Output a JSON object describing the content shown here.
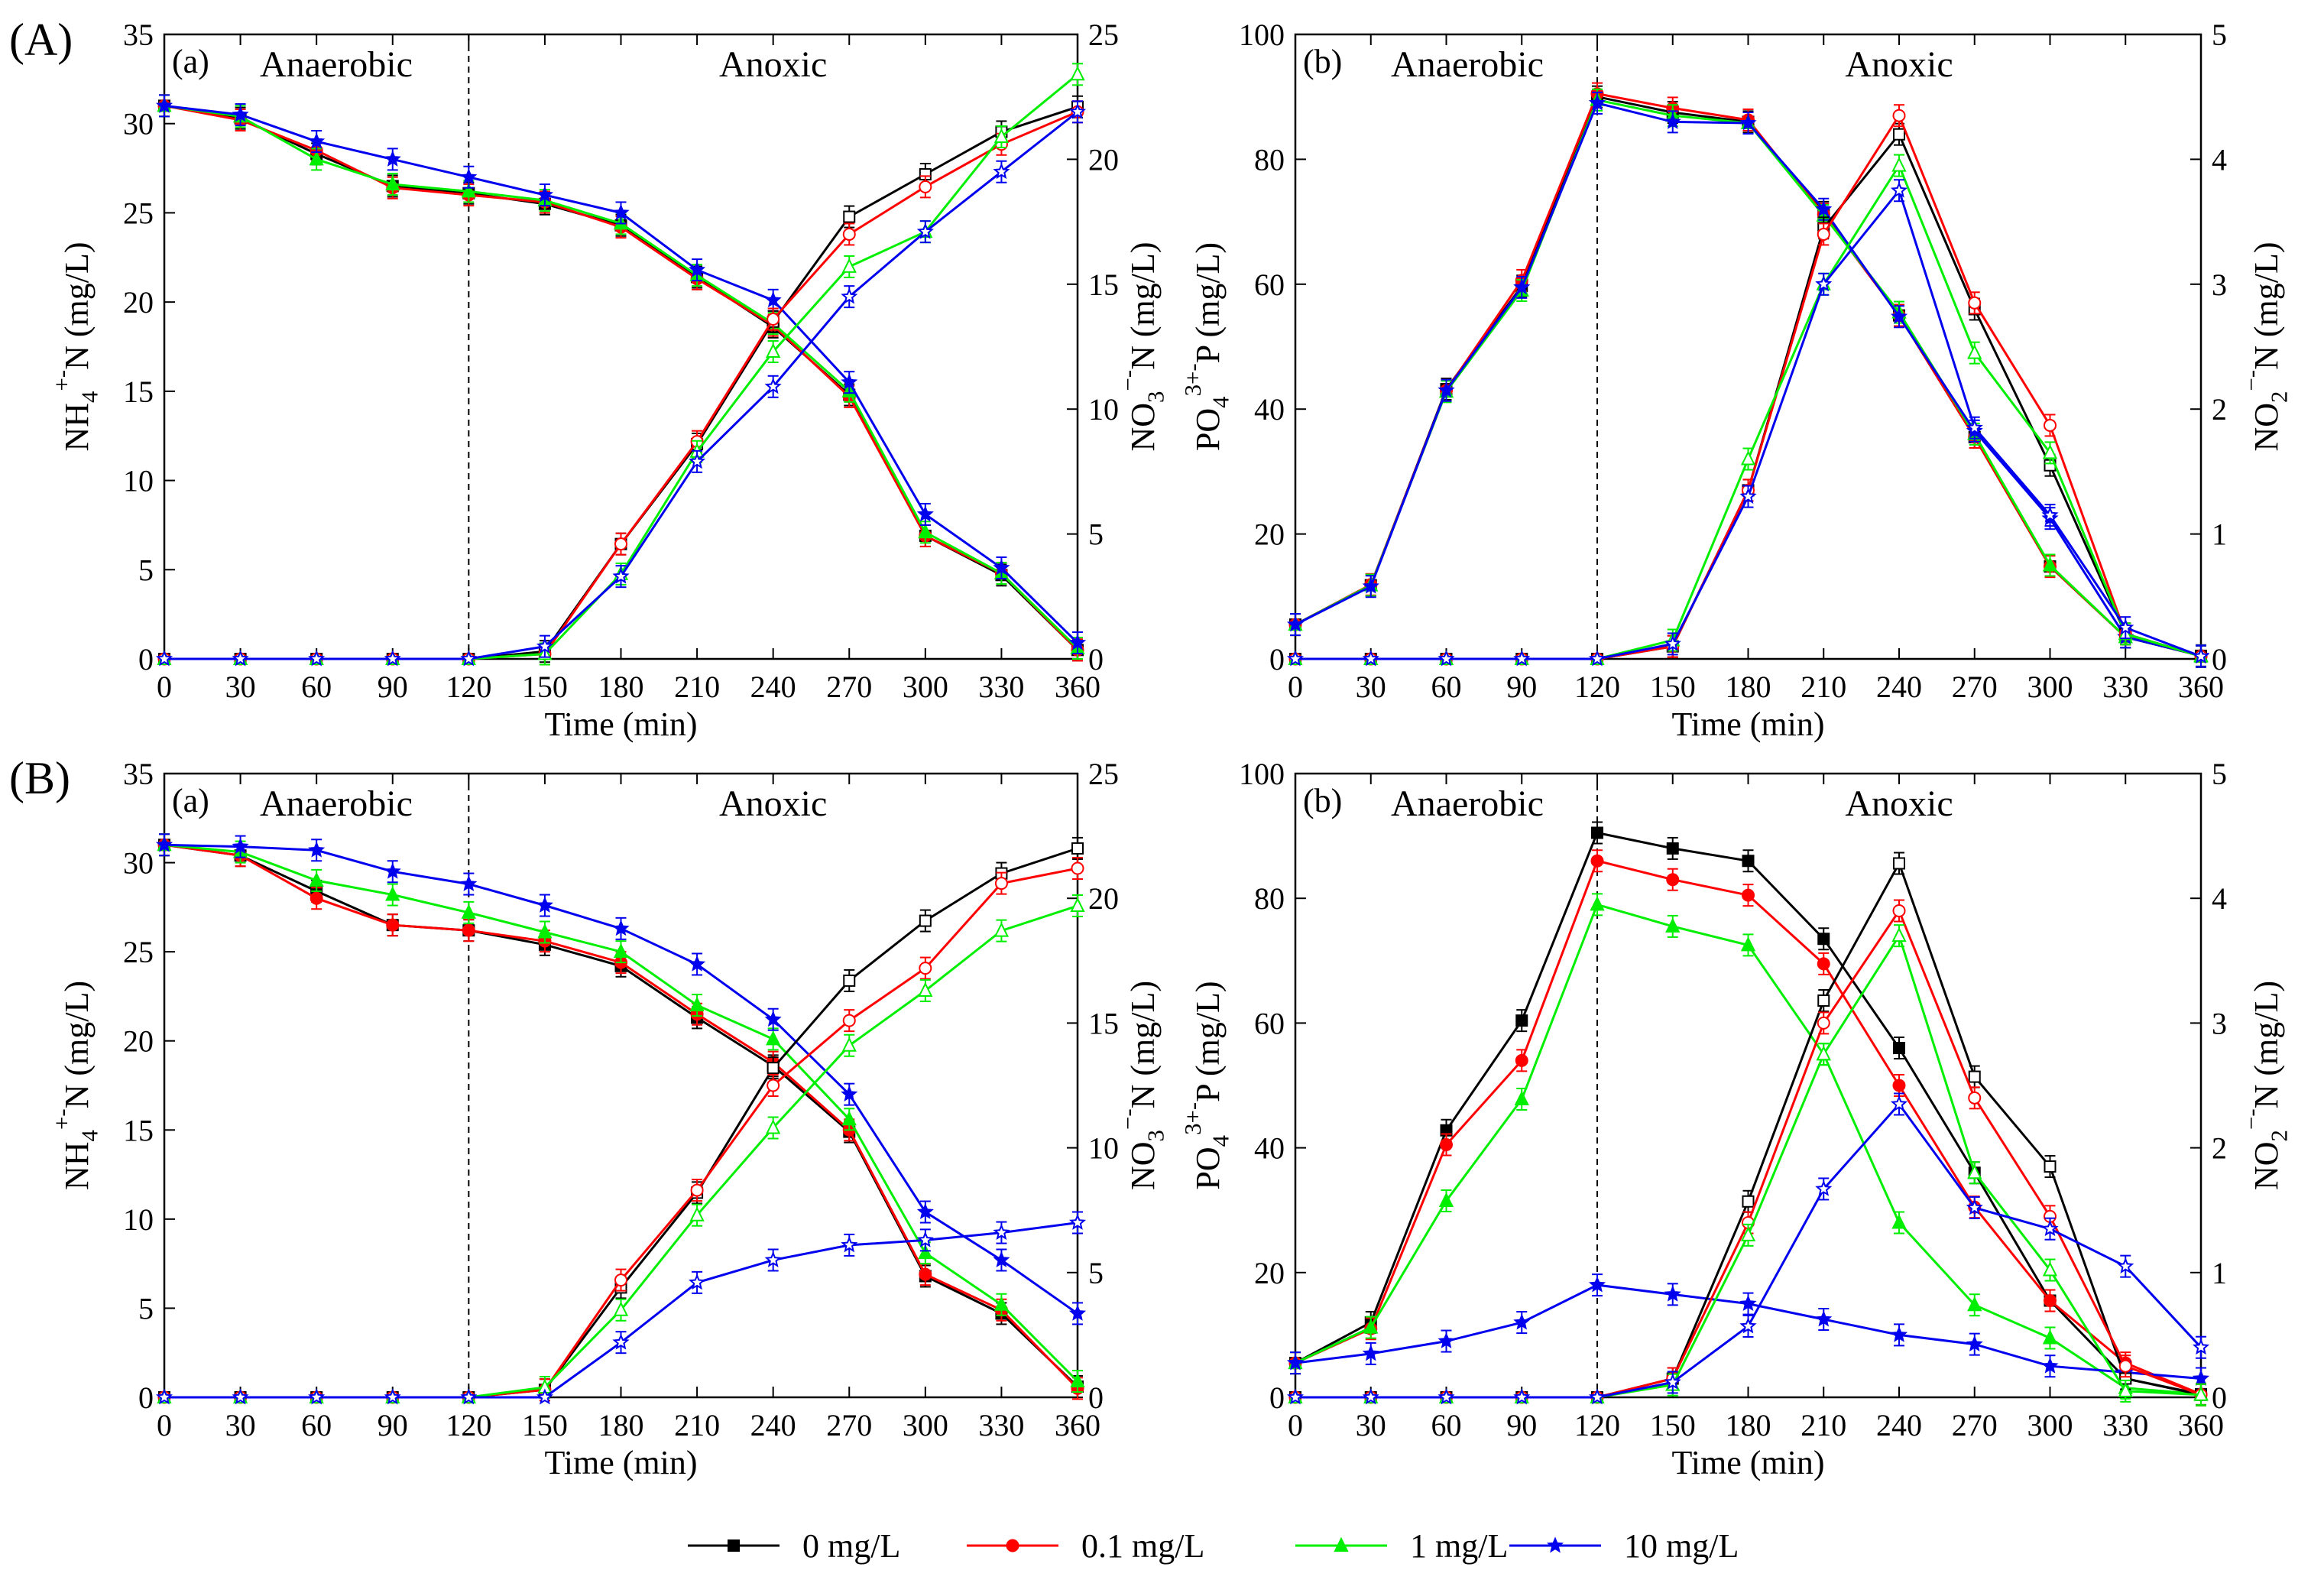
{
  "figure": {
    "group_labels": [
      "(A)",
      "(B)"
    ],
    "legend": [
      {
        "label": "0 mg/L",
        "color": "#000000",
        "marker": "square"
      },
      {
        "label": "0.1 mg/L",
        "color": "#ff0000",
        "marker": "circle"
      },
      {
        "label": "1 mg/L",
        "color": "#00ee00",
        "marker": "triangle"
      },
      {
        "label": "10 mg/L",
        "color": "#0000ee",
        "marker": "star"
      }
    ]
  },
  "chart_data": [
    {
      "id": "A-a",
      "type": "line",
      "panel_label": "(a)",
      "phase_labels": [
        "Anaerobic",
        "Anoxic"
      ],
      "phase_boundary": 120,
      "xlabel": "Time (min)",
      "ylabel": "NH4+-N (mg/L)",
      "y2label": "NO3−-N (mg/L)",
      "xlim": [
        0,
        360
      ],
      "ylim": [
        0,
        35
      ],
      "y2lim": [
        0,
        25
      ],
      "x": [
        0,
        30,
        60,
        90,
        120,
        150,
        180,
        210,
        240,
        270,
        300,
        330,
        360
      ],
      "xticks": [
        "0",
        "30",
        "60",
        "90",
        "120",
        "150",
        "180",
        "210",
        "240",
        "270",
        "300",
        "330",
        "360"
      ],
      "yticks": [
        "0",
        "5",
        "10",
        "15",
        "20",
        "25",
        "30",
        "35"
      ],
      "y2ticks": [
        "0",
        "5",
        "10",
        "15",
        "20",
        "25"
      ],
      "series": [
        {
          "name": "0 mg/L",
          "quantity": "NH4+-N",
          "axis": "left",
          "filled": true,
          "values": [
            31.0,
            30.3,
            28.3,
            26.5,
            26.1,
            25.5,
            24.3,
            21.4,
            18.6,
            14.8,
            6.9,
            4.7,
            0.5
          ]
        },
        {
          "name": "0.1 mg/L",
          "quantity": "NH4+-N",
          "axis": "left",
          "filled": true,
          "values": [
            31.0,
            30.2,
            28.5,
            26.4,
            26.0,
            25.6,
            24.2,
            21.3,
            18.7,
            14.7,
            6.9,
            4.8,
            0.5
          ]
        },
        {
          "name": "1 mg/L",
          "quantity": "NH4+-N",
          "axis": "left",
          "filled": true,
          "values": [
            31.0,
            30.4,
            28.0,
            26.6,
            26.2,
            25.7,
            24.4,
            21.5,
            18.8,
            15.0,
            7.1,
            4.8,
            0.6
          ]
        },
        {
          "name": "10 mg/L",
          "quantity": "NH4+-N",
          "axis": "left",
          "filled": true,
          "values": [
            31.0,
            30.5,
            29.0,
            28.0,
            27.0,
            26.0,
            25.0,
            21.8,
            20.1,
            15.5,
            8.1,
            5.1,
            0.9
          ]
        },
        {
          "name": "0 mg/L",
          "quantity": "NO3−-N",
          "axis": "right",
          "filled": false,
          "values": [
            0,
            0,
            0,
            0,
            0,
            0.3,
            4.6,
            8.6,
            13.5,
            17.7,
            19.4,
            21.1,
            22.1
          ]
        },
        {
          "name": "0.1 mg/L",
          "quantity": "NO3−-N",
          "axis": "right",
          "filled": false,
          "values": [
            0,
            0,
            0,
            0,
            0,
            0.2,
            4.6,
            8.7,
            13.6,
            17.0,
            18.9,
            20.6,
            21.9
          ]
        },
        {
          "name": "1 mg/L",
          "quantity": "NO3−-N",
          "axis": "right",
          "filled": false,
          "values": [
            0,
            0,
            0,
            0,
            0,
            0.2,
            3.4,
            8.3,
            12.3,
            15.7,
            17.1,
            20.9,
            23.4
          ]
        },
        {
          "name": "10 mg/L",
          "quantity": "NO3−-N",
          "axis": "right",
          "filled": false,
          "values": [
            0,
            0,
            0,
            0,
            0,
            0.5,
            3.3,
            7.9,
            10.9,
            14.5,
            17.1,
            19.5,
            21.9
          ]
        }
      ]
    },
    {
      "id": "A-b",
      "type": "line",
      "panel_label": "(b)",
      "phase_labels": [
        "Anaerobic",
        "Anoxic"
      ],
      "phase_boundary": 120,
      "xlabel": "Time (min)",
      "ylabel": "PO43+-P (mg/L)",
      "y2label": "NO2−-N (mg/L)",
      "xlim": [
        0,
        360
      ],
      "ylim": [
        0,
        100
      ],
      "y2lim": [
        0,
        5
      ],
      "x": [
        0,
        30,
        60,
        90,
        120,
        150,
        180,
        210,
        240,
        270,
        300,
        330,
        360
      ],
      "xticks": [
        "0",
        "30",
        "60",
        "90",
        "120",
        "150",
        "180",
        "210",
        "240",
        "270",
        "300",
        "330",
        "360"
      ],
      "yticks": [
        "0",
        "20",
        "40",
        "60",
        "80",
        "100"
      ],
      "y2ticks": [
        "0",
        "1",
        "2",
        "3",
        "4",
        "5"
      ],
      "series": [
        {
          "name": "0 mg/L",
          "quantity": "PO43+-P",
          "axis": "left",
          "filled": true,
          "values": [
            5.5,
            11.8,
            43.2,
            59.7,
            90.0,
            87.5,
            86.0,
            71.5,
            55.0,
            35.5,
            14.8,
            3.5,
            0.5
          ]
        },
        {
          "name": "0.1 mg/L",
          "quantity": "PO43+-P",
          "axis": "left",
          "filled": true,
          "values": [
            5.5,
            11.9,
            43.0,
            60.6,
            90.5,
            88.2,
            86.3,
            71.2,
            55.0,
            35.5,
            14.8,
            3.5,
            0.5
          ]
        },
        {
          "name": "1 mg/L",
          "quantity": "PO43+-P",
          "axis": "left",
          "filled": true,
          "values": [
            5.5,
            11.8,
            42.8,
            59.0,
            89.5,
            87.0,
            85.8,
            71.0,
            55.5,
            36.0,
            15.0,
            3.5,
            0.5
          ]
        },
        {
          "name": "10 mg/L",
          "quantity": "PO43+-P",
          "axis": "left",
          "filled": true,
          "values": [
            5.5,
            11.6,
            43.0,
            59.5,
            89.0,
            86.0,
            85.8,
            72.0,
            54.8,
            36.5,
            22.5,
            3.5,
            0.5
          ]
        },
        {
          "name": "0 mg/L",
          "quantity": "NO2−-N",
          "axis": "right",
          "filled": false,
          "values": [
            0,
            0,
            0,
            0,
            0,
            0.1,
            1.35,
            3.45,
            4.2,
            2.8,
            1.55,
            0.2,
            0.02
          ]
        },
        {
          "name": "0.1 mg/L",
          "quantity": "NO2−-N",
          "axis": "right",
          "filled": false,
          "values": [
            0,
            0,
            0,
            0,
            0,
            0.1,
            1.35,
            3.4,
            4.35,
            2.85,
            1.87,
            0.2,
            0.02
          ]
        },
        {
          "name": "1 mg/L",
          "quantity": "NO2−-N",
          "axis": "right",
          "filled": false,
          "values": [
            0,
            0,
            0,
            0,
            0,
            0.15,
            1.6,
            3.0,
            3.95,
            2.45,
            1.65,
            0.2,
            0.02
          ]
        },
        {
          "name": "10 mg/L",
          "quantity": "NO2−-N",
          "axis": "right",
          "filled": false,
          "values": [
            0,
            0,
            0,
            0,
            0,
            0.12,
            1.3,
            3.0,
            3.75,
            1.85,
            1.15,
            0.25,
            0.02
          ]
        }
      ]
    },
    {
      "id": "B-a",
      "type": "line",
      "panel_label": "(a)",
      "phase_labels": [
        "Anaerobic",
        "Anoxic"
      ],
      "phase_boundary": 120,
      "xlabel": "Time (min)",
      "ylabel": "NH4+-N (mg/L)",
      "y2label": "NO3−-N (mg/L)",
      "xlim": [
        0,
        360
      ],
      "ylim": [
        0,
        35
      ],
      "y2lim": [
        0,
        25
      ],
      "x": [
        0,
        30,
        60,
        90,
        120,
        150,
        180,
        210,
        240,
        270,
        300,
        330,
        360
      ],
      "xticks": [
        "0",
        "30",
        "60",
        "90",
        "120",
        "150",
        "180",
        "210",
        "240",
        "270",
        "300",
        "330",
        "360"
      ],
      "yticks": [
        "0",
        "5",
        "10",
        "15",
        "20",
        "25",
        "30",
        "35"
      ],
      "y2ticks": [
        "0",
        "5",
        "10",
        "15",
        "20",
        "25"
      ],
      "series": [
        {
          "name": "0 mg/L",
          "quantity": "NH4+-N",
          "axis": "left",
          "filled": true,
          "values": [
            31.0,
            30.4,
            28.4,
            26.5,
            26.2,
            25.4,
            24.2,
            21.3,
            18.6,
            14.9,
            6.8,
            4.7,
            0.6
          ]
        },
        {
          "name": "0.1 mg/L",
          "quantity": "NH4+-N",
          "axis": "left",
          "filled": true,
          "values": [
            31.0,
            30.4,
            28.0,
            26.5,
            26.2,
            25.6,
            24.4,
            21.5,
            18.8,
            15.0,
            6.9,
            4.9,
            0.5
          ]
        },
        {
          "name": "1 mg/L",
          "quantity": "NH4+-N",
          "axis": "left",
          "filled": true,
          "values": [
            31.0,
            30.6,
            29.0,
            28.2,
            27.2,
            26.1,
            25.0,
            22.0,
            20.1,
            15.6,
            8.1,
            5.2,
            0.9
          ]
        },
        {
          "name": "10 mg/L",
          "quantity": "NH4+-N",
          "axis": "left",
          "filled": true,
          "values": [
            31.0,
            30.9,
            30.7,
            29.5,
            28.8,
            27.6,
            26.3,
            24.3,
            21.2,
            17.0,
            10.4,
            7.7,
            4.7
          ]
        },
        {
          "name": "0 mg/L",
          "quantity": "NO3−-N",
          "axis": "right",
          "filled": false,
          "values": [
            0,
            0,
            0,
            0,
            0,
            0.3,
            4.4,
            8.2,
            13.2,
            16.7,
            19.1,
            21.0,
            22.0
          ]
        },
        {
          "name": "0.1 mg/L",
          "quantity": "NO3−-N",
          "axis": "right",
          "filled": false,
          "values": [
            0,
            0,
            0,
            0,
            0,
            0.3,
            4.7,
            8.3,
            12.5,
            15.1,
            17.2,
            20.6,
            21.2
          ]
        },
        {
          "name": "1 mg/L",
          "quantity": "NO3−-N",
          "axis": "right",
          "filled": false,
          "values": [
            0,
            0,
            0,
            0,
            0,
            0.4,
            3.5,
            7.3,
            10.8,
            14.1,
            16.3,
            18.7,
            19.7
          ]
        },
        {
          "name": "10 mg/L",
          "quantity": "NO3−-N",
          "axis": "right",
          "filled": false,
          "values": [
            0,
            0,
            0,
            0,
            0,
            0,
            2.2,
            4.6,
            5.5,
            6.1,
            6.3,
            6.6,
            7.0
          ]
        }
      ]
    },
    {
      "id": "B-b",
      "type": "line",
      "panel_label": "(b)",
      "phase_labels": [
        "Anaerobic",
        "Anoxic"
      ],
      "phase_boundary": 120,
      "xlabel": "Time (min)",
      "ylabel": "PO43+-P (mg/L)",
      "y2label": "NO2−-N (mg/L)",
      "xlim": [
        0,
        360
      ],
      "ylim": [
        0,
        100
      ],
      "y2lim": [
        0,
        5
      ],
      "x": [
        0,
        30,
        60,
        90,
        120,
        150,
        180,
        210,
        240,
        270,
        300,
        330,
        360
      ],
      "xticks": [
        "0",
        "30",
        "60",
        "90",
        "120",
        "150",
        "180",
        "210",
        "240",
        "270",
        "300",
        "330",
        "360"
      ],
      "yticks": [
        "0",
        "20",
        "40",
        "60",
        "80",
        "100"
      ],
      "y2ticks": [
        "0",
        "1",
        "2",
        "3",
        "4",
        "5"
      ],
      "series": [
        {
          "name": "0 mg/L",
          "quantity": "PO43+-P",
          "axis": "left",
          "filled": true,
          "values": [
            5.5,
            12.0,
            42.8,
            60.4,
            90.5,
            88.0,
            86.0,
            73.5,
            56.0,
            36.0,
            15.5,
            3.0,
            0.5
          ]
        },
        {
          "name": "0.1 mg/L",
          "quantity": "PO43+-P",
          "axis": "left",
          "filled": true,
          "values": [
            5.5,
            11.0,
            40.5,
            54.0,
            86.0,
            83.0,
            80.5,
            69.5,
            50.0,
            30.5,
            15.5,
            5.5,
            0.5
          ]
        },
        {
          "name": "1 mg/L",
          "quantity": "PO43+-P",
          "axis": "left",
          "filled": true,
          "values": [
            5.5,
            11.2,
            31.5,
            47.8,
            79.0,
            75.5,
            72.5,
            55.0,
            28.0,
            14.8,
            9.5,
            1.5,
            0.5
          ]
        },
        {
          "name": "10 mg/L",
          "quantity": "PO43+-P",
          "axis": "left",
          "filled": true,
          "values": [
            5.5,
            7.0,
            9.0,
            12.0,
            18.0,
            16.5,
            15.0,
            12.5,
            10.0,
            8.5,
            5.0,
            4.0,
            3.0
          ]
        },
        {
          "name": "0 mg/L",
          "quantity": "NO2−-N",
          "axis": "right",
          "filled": false,
          "values": [
            0,
            0,
            0,
            0,
            0,
            0.15,
            1.57,
            3.18,
            4.28,
            2.57,
            1.85,
            0.15,
            0.02
          ]
        },
        {
          "name": "0.1 mg/L",
          "quantity": "NO2−-N",
          "axis": "right",
          "filled": false,
          "values": [
            0,
            0,
            0,
            0,
            0,
            0.15,
            1.4,
            3.0,
            3.9,
            2.4,
            1.45,
            0.25,
            0.02
          ]
        },
        {
          "name": "1 mg/L",
          "quantity": "NO2−-N",
          "axis": "right",
          "filled": false,
          "values": [
            0,
            0,
            0,
            0,
            0,
            0.1,
            1.3,
            2.75,
            3.7,
            1.8,
            1.02,
            0.05,
            0.02
          ]
        },
        {
          "name": "10 mg/L",
          "quantity": "NO2−-N",
          "axis": "right",
          "filled": false,
          "values": [
            0,
            0,
            0,
            0,
            0,
            0.12,
            0.57,
            1.67,
            2.35,
            1.52,
            1.35,
            1.05,
            0.4
          ]
        }
      ]
    }
  ]
}
